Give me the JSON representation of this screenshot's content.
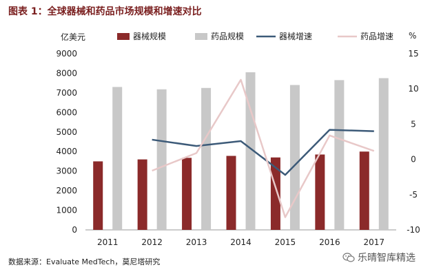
{
  "source_text": "数据来源：Evaluate MedTech，莫尼塔研究",
  "watermark_text": "乐晴智库精选",
  "icons": {
    "watermark": "wechat-icon"
  },
  "chart_data": {
    "type": "bar",
    "title": "图表 1：全球器械和药品市场规模和增速对比",
    "categories": [
      "2011",
      "2012",
      "2013",
      "2014",
      "2015",
      "2016",
      "2017"
    ],
    "y_left": {
      "label": "亿美元",
      "range": [
        0,
        9000
      ],
      "ticks": [
        "0",
        "1000",
        "2000",
        "3000",
        "4000",
        "5000",
        "6000",
        "7000",
        "8000",
        "9000"
      ]
    },
    "y_right": {
      "label": "%",
      "range": [
        -10,
        15
      ],
      "ticks": [
        "-10",
        "-5",
        "0",
        "5",
        "10",
        "15"
      ]
    },
    "series": [
      {
        "name": "器械规模",
        "type": "bar",
        "axis": "left",
        "color": "#8b2a2a",
        "values": [
          3500,
          3600,
          3680,
          3780,
          3700,
          3850,
          4000
        ]
      },
      {
        "name": "药品规模",
        "type": "bar",
        "axis": "left",
        "color": "#c8c8c8",
        "values": [
          7300,
          7180,
          7250,
          8050,
          7400,
          7650,
          7750
        ]
      },
      {
        "name": "器械增速",
        "type": "line",
        "axis": "right",
        "color": "#3c5a78",
        "values": [
          null,
          2.8,
          1.9,
          2.6,
          -2.2,
          4.2,
          4.0
        ]
      },
      {
        "name": "药品增速",
        "type": "line",
        "axis": "right",
        "color": "#e8c8c8",
        "values": [
          null,
          -1.6,
          0.9,
          11.3,
          -8.2,
          3.4,
          1.2
        ]
      }
    ],
    "legend": "top",
    "grid": false
  }
}
